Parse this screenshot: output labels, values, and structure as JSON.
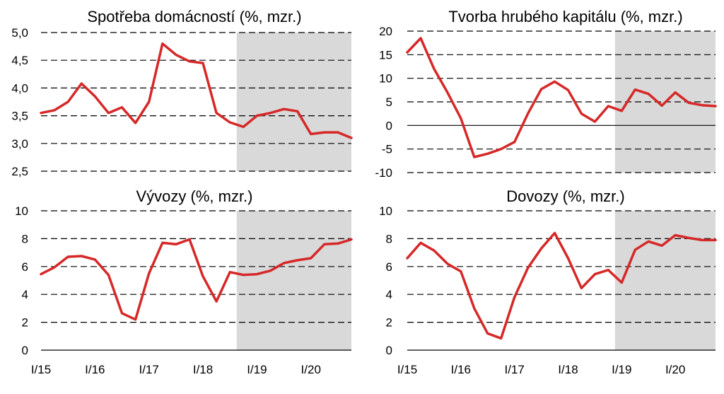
{
  "colors": {
    "series": "#d62828",
    "forecast_band": "#d9d9d9",
    "grid": "#000000"
  },
  "x_labels": [
    "I/15",
    "I/16",
    "I/17",
    "I/18",
    "I/19",
    "I/20"
  ],
  "chart_data": [
    {
      "type": "line",
      "title": "Spotřeba domácností (%, mzr.)",
      "ylim": [
        2.5,
        5.0
      ],
      "yticks": [
        "2,5",
        "3,0",
        "3,5",
        "4,0",
        "4,5",
        "5,0"
      ],
      "ytick_values": [
        2.5,
        3.0,
        3.5,
        4.0,
        4.5,
        5.0
      ],
      "forecast_start_index": 14,
      "x": [
        "I/15",
        "II/15",
        "III/15",
        "IV/15",
        "I/16",
        "II/16",
        "III/16",
        "IV/16",
        "I/17",
        "II/17",
        "III/17",
        "IV/17",
        "I/18",
        "II/18",
        "III/18",
        "IV/18",
        "I/19",
        "II/19",
        "III/19",
        "IV/19",
        "I/20",
        "II/20",
        "III/20",
        "IV/20"
      ],
      "values": [
        3.55,
        3.6,
        3.75,
        4.08,
        3.85,
        3.55,
        3.65,
        3.37,
        3.75,
        4.8,
        4.6,
        4.48,
        4.45,
        3.55,
        3.38,
        3.3,
        3.5,
        3.55,
        3.62,
        3.58,
        3.17,
        3.2,
        3.2,
        3.1
      ]
    },
    {
      "type": "line",
      "title": "Tvorba hrubého kapitálu (%, mzr.)",
      "ylim": [
        -10,
        20
      ],
      "yticks": [
        "-10",
        "-5",
        "0",
        "5",
        "10",
        "15",
        "20"
      ],
      "ytick_values": [
        -10,
        -5,
        0,
        5,
        10,
        15,
        20
      ],
      "forecast_start_index": 15,
      "x": [
        "I/15",
        "II/15",
        "III/15",
        "IV/15",
        "I/16",
        "II/16",
        "III/16",
        "IV/16",
        "I/17",
        "II/17",
        "III/17",
        "IV/17",
        "I/18",
        "II/18",
        "III/18",
        "IV/18",
        "I/19",
        "II/19",
        "III/19",
        "IV/19",
        "I/20",
        "II/20",
        "III/20",
        "IV/20"
      ],
      "values": [
        15.5,
        18.5,
        12,
        7,
        1.5,
        -6.7,
        -6,
        -5,
        -3.5,
        2.5,
        7.7,
        9.3,
        7.5,
        2.5,
        0.8,
        4.1,
        3.1,
        7.6,
        6.7,
        4.2,
        7,
        4.8,
        4.3,
        4.1
      ]
    },
    {
      "type": "line",
      "title": "Vývozy (%, mzr.)",
      "ylim": [
        0,
        10
      ],
      "yticks": [
        "0",
        "2",
        "4",
        "6",
        "8",
        "10"
      ],
      "ytick_values": [
        0,
        2,
        4,
        6,
        8,
        10
      ],
      "forecast_start_index": 14,
      "x": [
        "I/15",
        "II/15",
        "III/15",
        "IV/15",
        "I/16",
        "II/16",
        "III/16",
        "IV/16",
        "I/17",
        "II/17",
        "III/17",
        "IV/17",
        "I/18",
        "II/18",
        "III/18",
        "IV/18",
        "I/19",
        "II/19",
        "III/19",
        "IV/19",
        "I/20",
        "II/20",
        "III/20",
        "IV/20"
      ],
      "values": [
        5.45,
        5.95,
        6.7,
        6.75,
        6.5,
        5.4,
        2.65,
        2.2,
        5.5,
        7.7,
        7.6,
        7.95,
        5.3,
        3.5,
        5.6,
        5.4,
        5.45,
        5.7,
        6.25,
        6.45,
        6.6,
        7.6,
        7.65,
        7.95
      ]
    },
    {
      "type": "line",
      "title": "Dovozy (%, mzr.)",
      "ylim": [
        0,
        10
      ],
      "yticks": [
        "0",
        "2",
        "4",
        "6",
        "8",
        "10"
      ],
      "ytick_values": [
        0,
        2,
        4,
        6,
        8,
        10
      ],
      "forecast_start_index": 15,
      "x": [
        "I/15",
        "II/15",
        "III/15",
        "IV/15",
        "I/16",
        "II/16",
        "III/16",
        "IV/16",
        "I/17",
        "II/17",
        "III/17",
        "IV/17",
        "I/18",
        "II/18",
        "III/18",
        "IV/18",
        "I/19",
        "II/19",
        "III/19",
        "IV/19",
        "I/20",
        "II/20",
        "III/20",
        "IV/20"
      ],
      "values": [
        6.6,
        7.7,
        7.15,
        6.2,
        5.65,
        3.0,
        1.2,
        0.85,
        3.8,
        5.9,
        7.3,
        8.4,
        6.6,
        4.45,
        5.45,
        5.75,
        4.85,
        7.2,
        7.8,
        7.5,
        8.25,
        8.05,
        7.9,
        7.9
      ]
    }
  ]
}
